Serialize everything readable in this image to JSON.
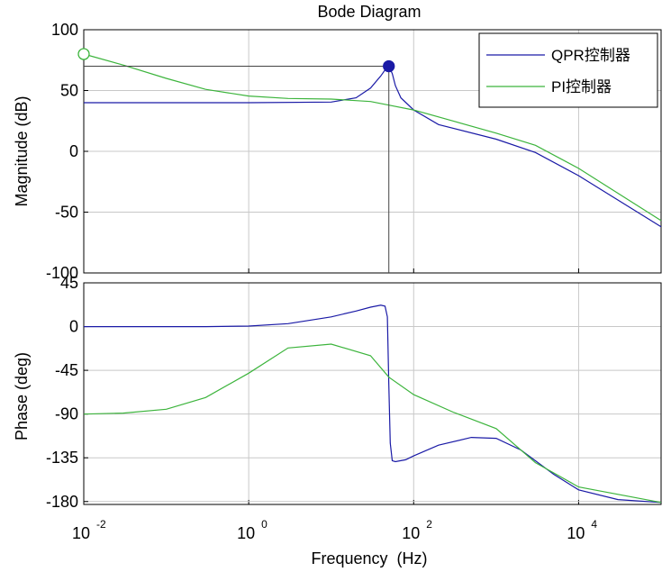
{
  "chart_data": {
    "type": "line",
    "title": "Bode Diagram",
    "xlabel": "Frequency  (Hz)",
    "x_scale": "log",
    "xlim": [
      0.01,
      100000
    ],
    "x_ticks": [
      {
        "value": 0.01,
        "base": "10",
        "exp": "-2"
      },
      {
        "value": 1,
        "base": "10",
        "exp": "0"
      },
      {
        "value": 100,
        "base": "10",
        "exp": "2"
      },
      {
        "value": 10000,
        "base": "10",
        "exp": "4"
      }
    ],
    "grid": true,
    "legend": {
      "placement": "top-right",
      "entries": [
        "QPR控制器",
        "PI控制器"
      ]
    },
    "colors": {
      "qpr": "#1a1aa6",
      "pi": "#3cb43c",
      "grid": "#c8c8c8",
      "marker_line": "#444444"
    },
    "magnitude": {
      "ylabel": "Magnitude (dB)",
      "ylim": [
        -100,
        100
      ],
      "y_ticks": [
        "100",
        "50",
        "0",
        "-50",
        "-100"
      ],
      "series": [
        {
          "name": "QPR控制器",
          "x": [
            0.01,
            1,
            10,
            20,
            30,
            40,
            45,
            50,
            55,
            60,
            70,
            100,
            200,
            1000,
            3000,
            10000,
            100000
          ],
          "y": [
            40,
            40,
            40.5,
            44,
            52,
            62,
            67,
            70,
            64,
            54,
            44,
            34,
            22,
            10,
            -1,
            -20,
            -62
          ]
        },
        {
          "name": "PI控制器",
          "x": [
            0.01,
            0.03,
            0.1,
            0.3,
            1,
            3,
            10,
            30,
            50,
            100,
            300,
            1000,
            3000,
            10000,
            100000
          ],
          "y": [
            80,
            71,
            60,
            51,
            45.5,
            43.5,
            43,
            41,
            38,
            34,
            25,
            15,
            5,
            -14,
            -57
          ]
        }
      ],
      "markers": [
        {
          "series": "QPR控制器",
          "x": 50,
          "y": 70,
          "style": "filled"
        },
        {
          "series": "PI控制器",
          "x": 0.01,
          "y": 80,
          "style": "hollow"
        }
      ]
    },
    "phase": {
      "ylabel": "Phase (deg)",
      "ylim": [
        -183,
        45
      ],
      "y_ticks": [
        "45",
        "0",
        "-45",
        "-90",
        "-135",
        "-180"
      ],
      "series": [
        {
          "name": "QPR控制器",
          "x": [
            0.01,
            0.3,
            1,
            3,
            10,
            20,
            30,
            40,
            45,
            48,
            50,
            52,
            55,
            60,
            80,
            100,
            200,
            500,
            1000,
            2000,
            5000,
            10000,
            30000,
            100000
          ],
          "y": [
            0,
            0,
            0.5,
            3,
            10,
            16,
            20,
            22,
            21,
            10,
            -60,
            -120,
            -138,
            -139,
            -137,
            -133,
            -122,
            -114,
            -115,
            -127,
            -152,
            -168,
            -178,
            -181
          ]
        },
        {
          "name": "PI控制器",
          "x": [
            0.01,
            0.03,
            0.1,
            0.3,
            1,
            3,
            10,
            30,
            50,
            100,
            300,
            1000,
            3000,
            10000,
            100000
          ],
          "y": [
            -90,
            -89,
            -85,
            -73,
            -48,
            -22,
            -18,
            -30,
            -52,
            -70,
            -88,
            -105,
            -140,
            -165,
            -181
          ]
        }
      ]
    }
  }
}
